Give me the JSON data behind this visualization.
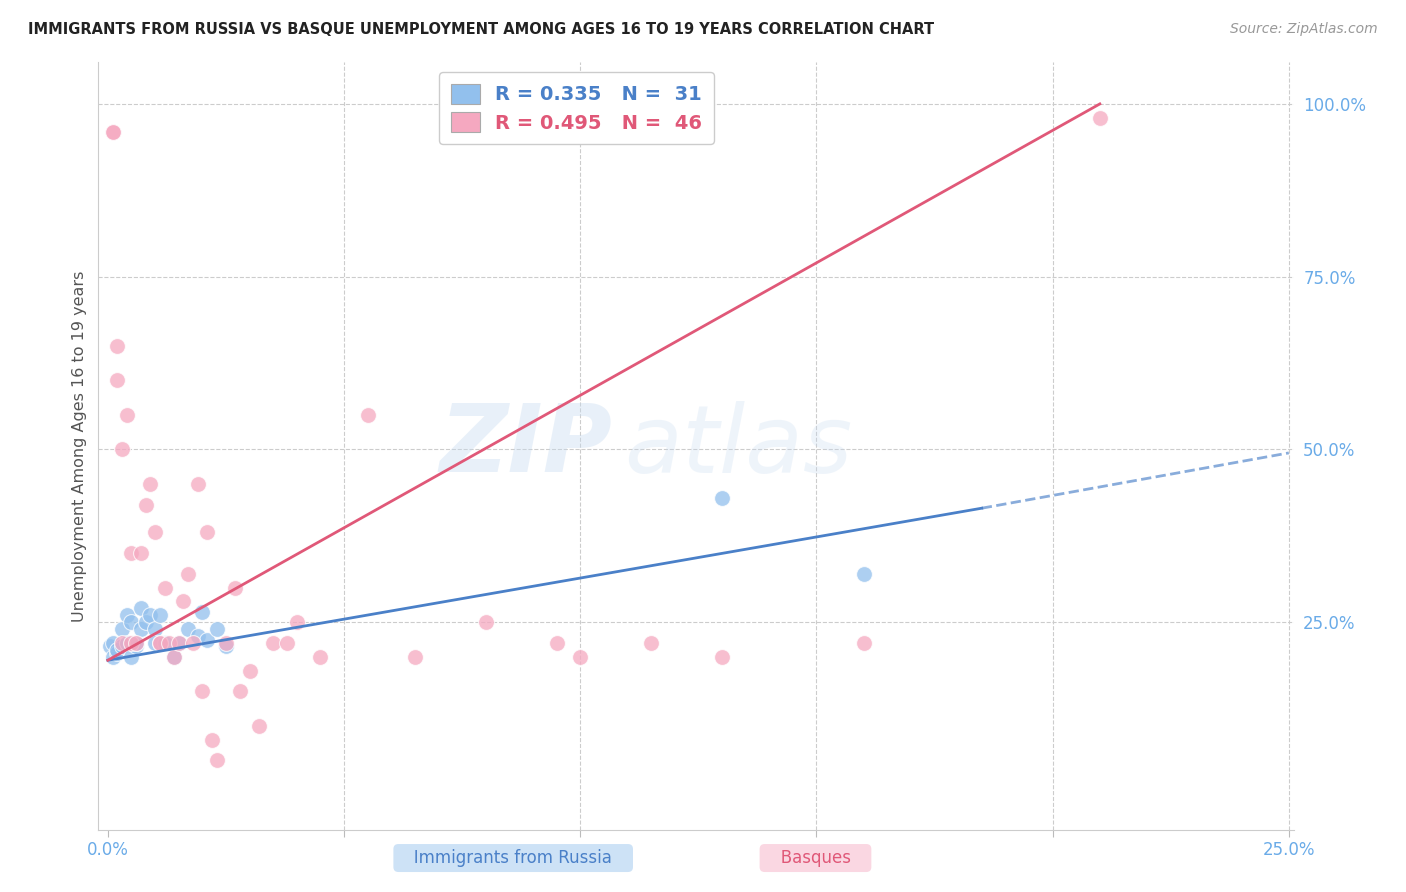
{
  "title": "IMMIGRANTS FROM RUSSIA VS BASQUE UNEMPLOYMENT AMONG AGES 16 TO 19 YEARS CORRELATION CHART",
  "source": "Source: ZipAtlas.com",
  "ylabel": "Unemployment Among Ages 16 to 19 years",
  "legend_russia_r": "0.335",
  "legend_russia_n": "31",
  "legend_basque_r": "0.495",
  "legend_basque_n": "46",
  "color_russia": "#92c0ed",
  "color_basque": "#f5a8c0",
  "color_trend_russia": "#4a80c8",
  "color_trend_basque": "#e05878",
  "color_axis": "#6aabe8",
  "color_title": "#222222",
  "color_source": "#999999",
  "watermark_zip": "ZIP",
  "watermark_atlas": "atlas",
  "xlim": [
    -0.002,
    0.251
  ],
  "ylim": [
    -0.05,
    1.06
  ],
  "russia_x": [
    0.0005,
    0.001,
    0.001,
    0.002,
    0.002,
    0.003,
    0.003,
    0.004,
    0.004,
    0.005,
    0.005,
    0.006,
    0.006,
    0.007,
    0.007,
    0.008,
    0.009,
    0.01,
    0.01,
    0.011,
    0.012,
    0.014,
    0.015,
    0.017,
    0.019,
    0.02,
    0.021,
    0.023,
    0.025,
    0.13,
    0.16
  ],
  "russia_y": [
    0.215,
    0.2,
    0.22,
    0.205,
    0.21,
    0.24,
    0.215,
    0.26,
    0.22,
    0.25,
    0.2,
    0.215,
    0.22,
    0.27,
    0.24,
    0.25,
    0.26,
    0.24,
    0.22,
    0.26,
    0.22,
    0.2,
    0.22,
    0.24,
    0.23,
    0.265,
    0.225,
    0.24,
    0.215,
    0.43,
    0.32
  ],
  "basque_x": [
    0.001,
    0.001,
    0.002,
    0.002,
    0.003,
    0.003,
    0.004,
    0.005,
    0.005,
    0.006,
    0.007,
    0.008,
    0.009,
    0.01,
    0.011,
    0.011,
    0.012,
    0.013,
    0.014,
    0.015,
    0.016,
    0.017,
    0.018,
    0.019,
    0.02,
    0.021,
    0.022,
    0.023,
    0.025,
    0.027,
    0.028,
    0.03,
    0.032,
    0.035,
    0.038,
    0.04,
    0.045,
    0.055,
    0.065,
    0.08,
    0.095,
    0.1,
    0.115,
    0.13,
    0.16,
    0.21
  ],
  "basque_y": [
    0.96,
    0.96,
    0.6,
    0.65,
    0.5,
    0.22,
    0.55,
    0.35,
    0.22,
    0.22,
    0.35,
    0.42,
    0.45,
    0.38,
    0.22,
    0.22,
    0.3,
    0.22,
    0.2,
    0.22,
    0.28,
    0.32,
    0.22,
    0.45,
    0.15,
    0.38,
    0.08,
    0.05,
    0.22,
    0.3,
    0.15,
    0.18,
    0.1,
    0.22,
    0.22,
    0.25,
    0.2,
    0.55,
    0.2,
    0.25,
    0.22,
    0.2,
    0.22,
    0.2,
    0.22,
    0.98
  ],
  "trend_russia_x0": 0.0,
  "trend_russia_y0": 0.195,
  "trend_russia_x1": 0.185,
  "trend_russia_y1": 0.415,
  "trend_russia_dash_x0": 0.185,
  "trend_russia_dash_y0": 0.415,
  "trend_russia_dash_x1": 0.25,
  "trend_russia_dash_y1": 0.495,
  "trend_basque_x0": 0.0,
  "trend_basque_y0": 0.195,
  "trend_basque_x1": 0.21,
  "trend_basque_y1": 1.0,
  "figsize": [
    14.06,
    8.92
  ],
  "dpi": 100
}
